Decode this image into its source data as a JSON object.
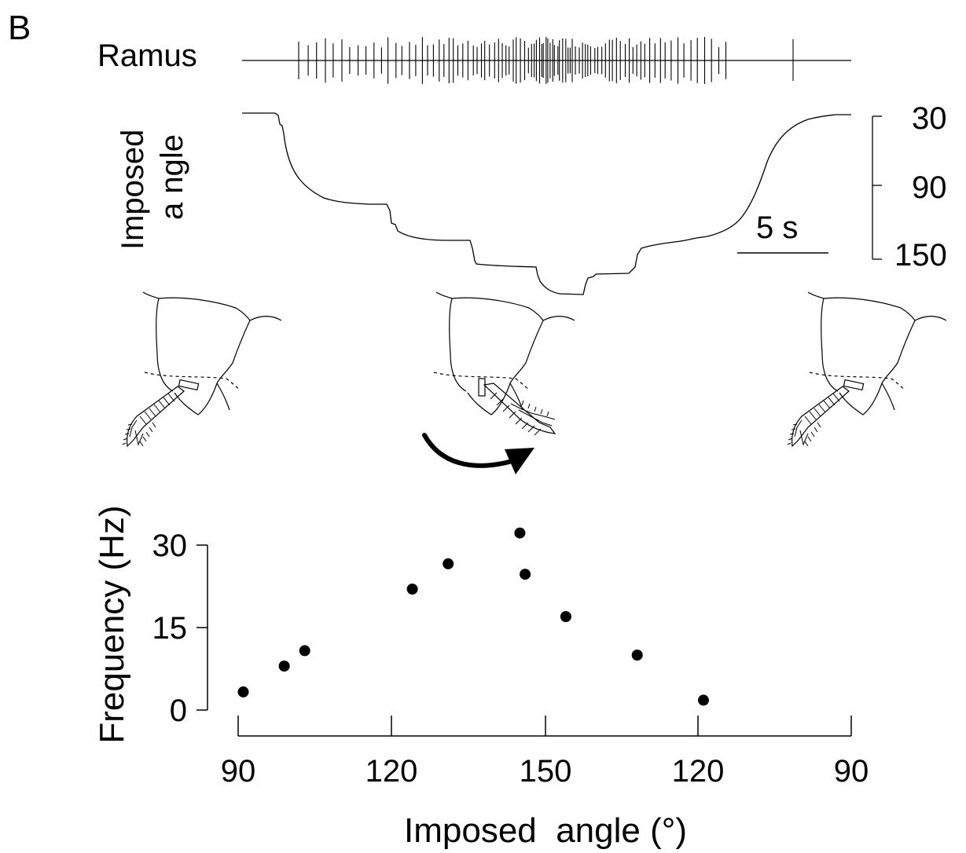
{
  "panel_label": "B",
  "trace": {
    "label": "Ramus",
    "angle_label_line1": "Imposed",
    "angle_label_line2": "a ngle",
    "angle_ticks": [
      "30",
      "90",
      "150"
    ],
    "time_scale_label": "5 s"
  },
  "chart_data": {
    "type": "scatter",
    "title": "",
    "xlabel": "Imposed  angle (°)",
    "ylabel": "Frequency (Hz)",
    "x_tick_labels": [
      "90",
      "120",
      "150",
      "120",
      "90"
    ],
    "y_ticks": [
      0,
      15,
      30
    ],
    "ylim": [
      0,
      30
    ],
    "x_note": "x axis is a ramp: 90 → 150 (increasing) then 150 → 90 (decreasing)",
    "series": [
      {
        "values": [
          {
            "x": 91,
            "y": 3.3
          },
          {
            "x": 99,
            "y": 8.0
          },
          {
            "x": 103,
            "y": 10.8
          },
          {
            "x": 124,
            "y": 22.0
          },
          {
            "x": 131,
            "y": 26.6
          },
          {
            "x": 145,
            "y": 32.2
          },
          {
            "x": 154,
            "y": 24.7
          },
          {
            "x": 146,
            "y": 17.0
          },
          {
            "x": 132,
            "y": 10.0
          },
          {
            "x": 119,
            "y": 1.8
          }
        ]
      }
    ],
    "grid": false
  }
}
